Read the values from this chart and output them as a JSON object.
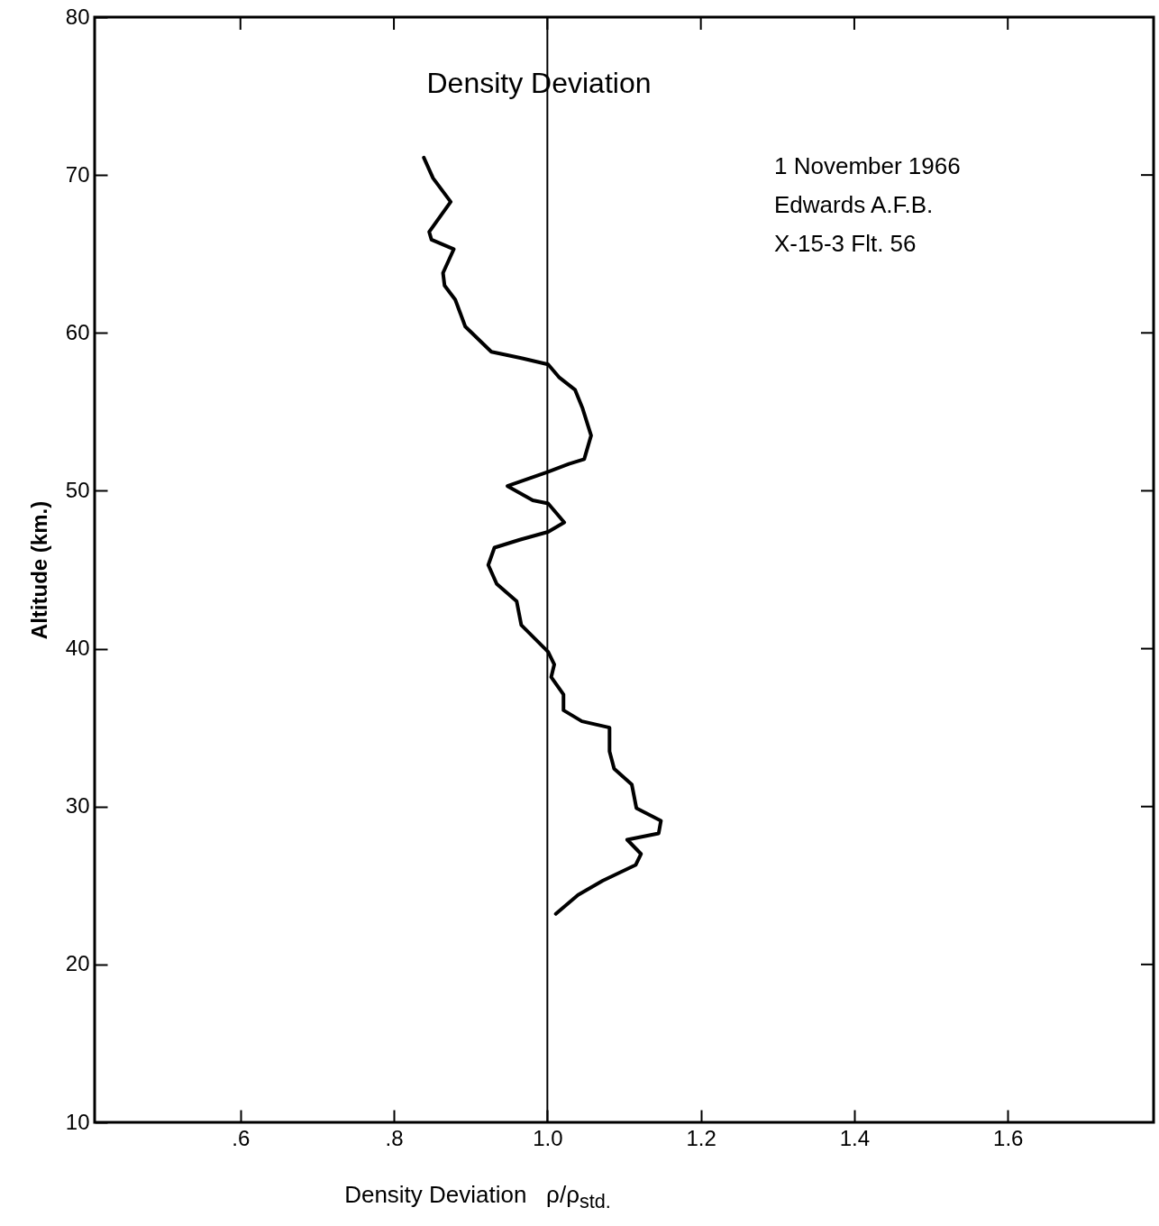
{
  "chart_data": {
    "type": "line",
    "title": "Density Deviation",
    "xlabel": "Density Deviation   ρ/ρ$_{std.}$",
    "ylabel": "Altitude (km.)",
    "annotations": [
      "1 November 1966",
      "Edwards A.F.B.",
      "X-15-3    Flt. 56"
    ],
    "xlim": [
      0.41,
      1.79
    ],
    "ylim": [
      10,
      80
    ],
    "xticks": [
      {
        "value": 0.6,
        "label": ".6"
      },
      {
        "value": 0.8,
        "label": ".8"
      },
      {
        "value": 1.0,
        "label": "1.0"
      },
      {
        "value": 1.2,
        "label": "1.2"
      },
      {
        "value": 1.4,
        "label": "1.4"
      },
      {
        "value": 1.6,
        "label": "1.6"
      }
    ],
    "yticks": [
      10,
      20,
      30,
      40,
      50,
      60,
      70,
      80
    ],
    "grid": false,
    "marker": "none",
    "line_style": "solid",
    "ref_lines": [
      {
        "axis": "x",
        "value": 1.0,
        "color": "#000000"
      }
    ],
    "series": [
      {
        "color": "#000000",
        "x": [
          0.839,
          0.851,
          0.874,
          0.846,
          0.849,
          0.878,
          0.864,
          0.866,
          0.88,
          0.893,
          0.927,
          0.966,
          1.001,
          1.015,
          1.036,
          1.046,
          1.057,
          1.048,
          1.028,
          1.001,
          0.948,
          0.981,
          1.001,
          1.022,
          1.001,
          0.964,
          0.931,
          0.923,
          0.934,
          0.96,
          0.966,
          1.001,
          1.009,
          1.005,
          1.021,
          1.021,
          1.045,
          1.081,
          1.081,
          1.087,
          1.11,
          1.116,
          1.148,
          1.145,
          1.104,
          1.122,
          1.115,
          1.072,
          1.04,
          1.011
        ],
        "values": [
          71.1,
          69.8,
          68.3,
          66.4,
          65.9,
          65.3,
          63.8,
          63.0,
          62.1,
          60.4,
          58.8,
          58.4,
          58.0,
          57.2,
          56.4,
          55.2,
          53.5,
          52.0,
          51.7,
          51.2,
          50.3,
          49.4,
          49.2,
          48.0,
          47.4,
          46.9,
          46.4,
          45.3,
          44.1,
          43.0,
          41.5,
          39.8,
          39.0,
          38.2,
          37.1,
          36.1,
          35.4,
          35.0,
          33.5,
          32.4,
          31.4,
          29.9,
          29.1,
          28.3,
          27.9,
          27.0,
          26.3,
          25.3,
          24.4,
          23.2
        ]
      }
    ]
  }
}
